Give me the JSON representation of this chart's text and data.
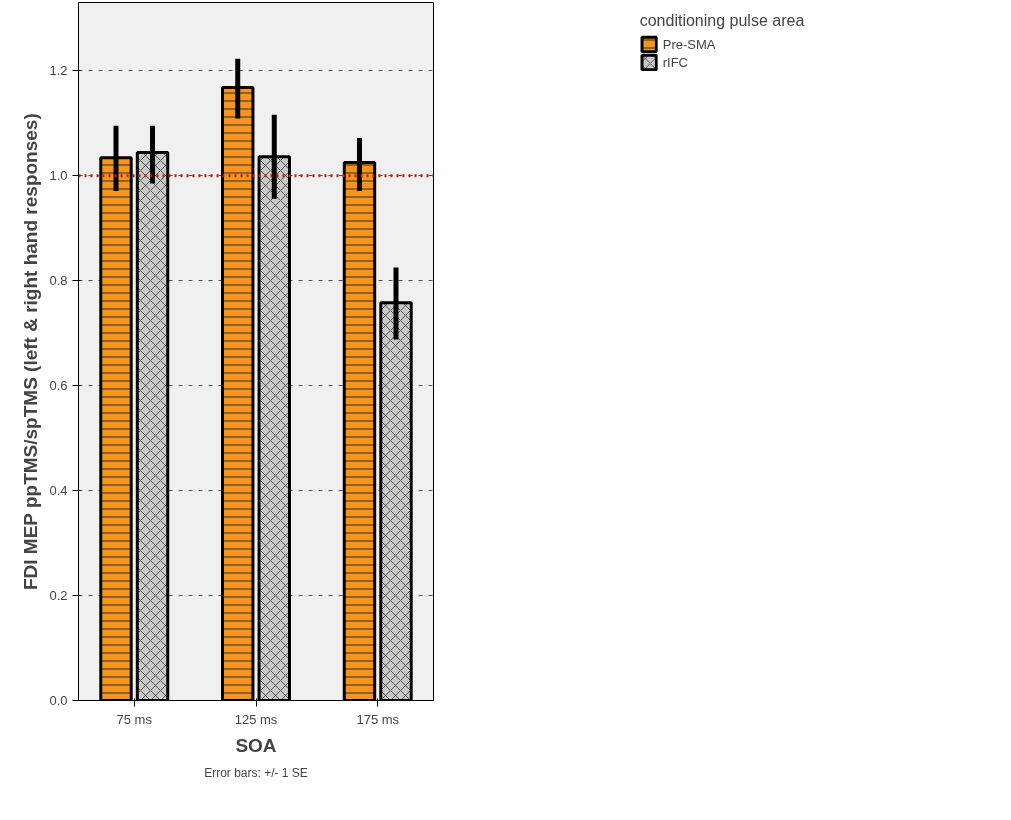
{
  "chart_data": {
    "type": "bar",
    "xlabel": "SOA",
    "ylabel": "FDI MEP ppTMS/spTMS (left & right hand responses)",
    "legend_title": "conditioning pulse area",
    "categories": [
      "75 ms",
      "125 ms",
      "175 ms"
    ],
    "series": [
      {
        "name": "Pre-SMA",
        "color": "#f7941d",
        "values": [
          1.034,
          1.168,
          1.025
        ],
        "errors": [
          [
            0.971,
            1.095
          ],
          [
            1.109,
            1.223
          ],
          [
            0.971,
            1.072
          ]
        ]
      },
      {
        "name": "rIFC",
        "color": "#c8c8c8",
        "values": [
          1.044,
          1.036,
          0.758
        ],
        "errors": [
          [
            0.985,
            1.095
          ],
          [
            0.956,
            1.116
          ],
          [
            0.688,
            0.825
          ]
        ]
      }
    ],
    "ylim": [
      0,
      1.33
    ],
    "yticks": [
      {
        "value": 0,
        "label": "0.0"
      },
      0.2,
      0.4,
      0.6,
      0.8,
      {
        "value": 1,
        "label": "1.0"
      },
      1.2
    ],
    "grid": "y",
    "legend": "top right",
    "ref_lines": [
      {
        "axis": "y",
        "value": 1.0,
        "color": "#b22222",
        "line_style": "dotted"
      }
    ],
    "annotations": [
      "Error bars: +/- 1 SE"
    ]
  }
}
